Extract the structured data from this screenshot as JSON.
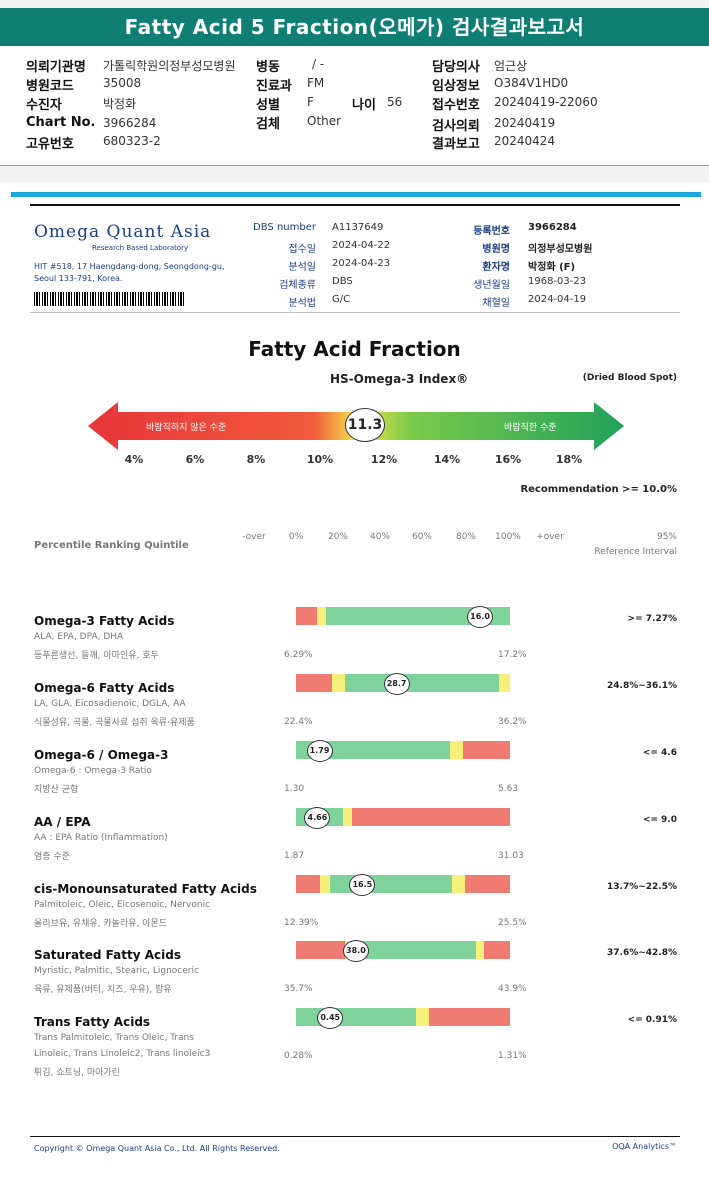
{
  "header": {
    "title": "Fatty Acid 5 Fraction(오메가) 검사결과보고서",
    "fields": [
      {
        "label": "의뢰기관명",
        "value": "가톨릭학원의정부성모병원"
      },
      {
        "label": "병원코드",
        "value": "35008"
      },
      {
        "label": "수진자",
        "value": "박정화"
      },
      {
        "label": "Chart No.",
        "value": "3966284"
      },
      {
        "label": "고유번호",
        "value": "680323-2"
      },
      {
        "label": "병동",
        "value": "/ -"
      },
      {
        "label": "진료과",
        "value": "FM"
      },
      {
        "label": "성별",
        "value": "F"
      },
      {
        "label": "나이",
        "value": "56"
      },
      {
        "label": "검체",
        "value": "Other"
      },
      {
        "label": "담당의사",
        "value": "엄근상"
      },
      {
        "label": "임상정보",
        "value": "O384V1HD0"
      },
      {
        "label": "접수번호",
        "value": "20240419-22060"
      },
      {
        "label": "검사의뢰",
        "value": "20240419"
      },
      {
        "label": "결과보고",
        "value": "20240424"
      }
    ]
  },
  "lab": {
    "logo": "Omega Quant Asia",
    "tagline": "Research Based Laboratory",
    "address1": "HIT #518, 17 Haengdang-dong, Seongdong-gu,",
    "address2": "Seoul 133-791, Korea."
  },
  "sample_info": [
    {
      "label": "DBS number",
      "value": "A1137649"
    },
    {
      "label": "접수일",
      "value": "2024-04-22"
    },
    {
      "label": "분석일",
      "value": "2024-04-23"
    },
    {
      "label": "검체종류",
      "value": "DBS"
    },
    {
      "label": "분석법",
      "value": "G/C"
    }
  ],
  "patient_info": [
    {
      "label": "등록번호",
      "value": "3966284"
    },
    {
      "label": "병원명",
      "value": "의정부성모병원"
    },
    {
      "label": "환자명",
      "value": "박정화 (F)"
    },
    {
      "label": "생년월일",
      "value": "1968-03-23"
    },
    {
      "label": "채혈일",
      "value": "2024-04-19"
    }
  ],
  "report": {
    "title": "Fatty Acid Fraction",
    "index_title": "HS-Omega-3 Index®",
    "sample_type": "(Dried Blood Spot)",
    "index_value": "11.3",
    "index_value_num": 11.3,
    "bad_label": "바람직하지 않은 수준",
    "good_label": "바람직한 수준",
    "ticks": [
      "4%",
      "6%",
      "8%",
      "10%",
      "12%",
      "14%",
      "16%",
      "18%"
    ],
    "recommendation": "Recommendation  >= 10.0%"
  },
  "percentile": {
    "title": "Percentile Ranking Quintile",
    "ticks": [
      "-over",
      "0%",
      "20%",
      "40%",
      "60%",
      "80%",
      "100%",
      "+over"
    ],
    "ref_header1": "95%",
    "ref_header2": "Reference Interval"
  },
  "rows": [
    {
      "name": "Omega-3 Fatty Acids",
      "sub": "ALA, EPA, DPA, DHA",
      "food": "등푸른생선, 들깨, 아마인유, 호두",
      "value": "16.0",
      "pos": 0.86,
      "min": "6.29%",
      "max": "17.2%",
      "ref": ">= 7.27%",
      "segs": [
        [
          "#f07b73",
          0,
          0.1
        ],
        [
          "#f6ef7a",
          0.1,
          0.14
        ],
        [
          "#7fd39a",
          0.14,
          1
        ]
      ]
    },
    {
      "name": "Omega-6 Fatty Acids",
      "sub": "LA, GLA, Eicosadienoic, DGLA, AA",
      "food": "식물성유, 곡물, 곡물사료 섭취 육류·유제품",
      "value": "28.7",
      "pos": 0.47,
      "min": "22.4%",
      "max": "36.2%",
      "ref": "24.8%~36.1%",
      "segs": [
        [
          "#f07b73",
          0,
          0.17
        ],
        [
          "#f6ef7a",
          0.17,
          0.23
        ],
        [
          "#7fd39a",
          0.23,
          0.95
        ],
        [
          "#f6ef7a",
          0.95,
          1
        ]
      ]
    },
    {
      "name": "Omega-6 / Omega-3",
      "sub": "Omega-6 : Omega-3 Ratio",
      "food": "지방산 균형",
      "value": "1.79",
      "pos": 0.11,
      "min": "1.30",
      "max": "5.63",
      "ref": "<= 4.6",
      "segs": [
        [
          "#7fd39a",
          0,
          0.72
        ],
        [
          "#f6ef7a",
          0.72,
          0.78
        ],
        [
          "#f07b73",
          0.78,
          1
        ]
      ]
    },
    {
      "name": "AA / EPA",
      "sub": "AA : EPA Ratio (Inflammation)",
      "food": "염증 수준",
      "value": "4.66",
      "pos": 0.1,
      "min": "1.87",
      "max": "31.03",
      "ref": "<= 9.0",
      "segs": [
        [
          "#7fd39a",
          0,
          0.22
        ],
        [
          "#f6ef7a",
          0.22,
          0.26
        ],
        [
          "#f07b73",
          0.26,
          1
        ]
      ]
    },
    {
      "name": "cis-Monounsaturated Fatty Acids",
      "sub": "Palmitoleic, Oleic, Eicosenoic, Nervonic",
      "food": "올리브유, 유채유, 카놀라유, 아몬드",
      "value": "16.5",
      "pos": 0.31,
      "min": "12.39%",
      "max": "25.5%",
      "ref": "13.7%~22.5%",
      "segs": [
        [
          "#f07b73",
          0,
          0.11
        ],
        [
          "#f6ef7a",
          0.11,
          0.16
        ],
        [
          "#7fd39a",
          0.16,
          0.73
        ],
        [
          "#f6ef7a",
          0.73,
          0.79
        ],
        [
          "#f07b73",
          0.79,
          1
        ]
      ]
    },
    {
      "name": "Saturated Fatty Acids",
      "sub": "Myristic, Palmitic, Stearic, Lignoceric",
      "food": "육류, 유제품(버터, 치즈, 우유), 팜유",
      "value": "38.0",
      "pos": 0.28,
      "min": "35.7%",
      "max": "43.9%",
      "ref": "37.6%~42.8%",
      "segs": [
        [
          "#f07b73",
          0,
          0.23
        ],
        [
          "#f6ef7a",
          0.23,
          0.28
        ],
        [
          "#7fd39a",
          0.28,
          0.84
        ],
        [
          "#f6ef7a",
          0.84,
          0.88
        ],
        [
          "#f07b73",
          0.88,
          1
        ]
      ]
    },
    {
      "name": "Trans Fatty Acids",
      "sub": "Trans Palmitoleic, Trans Oleic, Trans",
      "sub2": "Linoleic, Trans Linoleic2, Trans linoleic3",
      "food": "튀김, 쇼트닝, 마아가린",
      "value": "0.45",
      "pos": 0.16,
      "min": "0.28%",
      "max": "1.31%",
      "ref": "<= 0.91%",
      "segs": [
        [
          "#7fd39a",
          0,
          0.56
        ],
        [
          "#f6ef7a",
          0.56,
          0.62
        ],
        [
          "#f07b73",
          0.62,
          1
        ]
      ]
    }
  ],
  "footer": {
    "copyright": "Copyright © Omega Quant Asia Co., Ltd.  All Rights Reserved.",
    "brand": "OQA Analytics™"
  }
}
